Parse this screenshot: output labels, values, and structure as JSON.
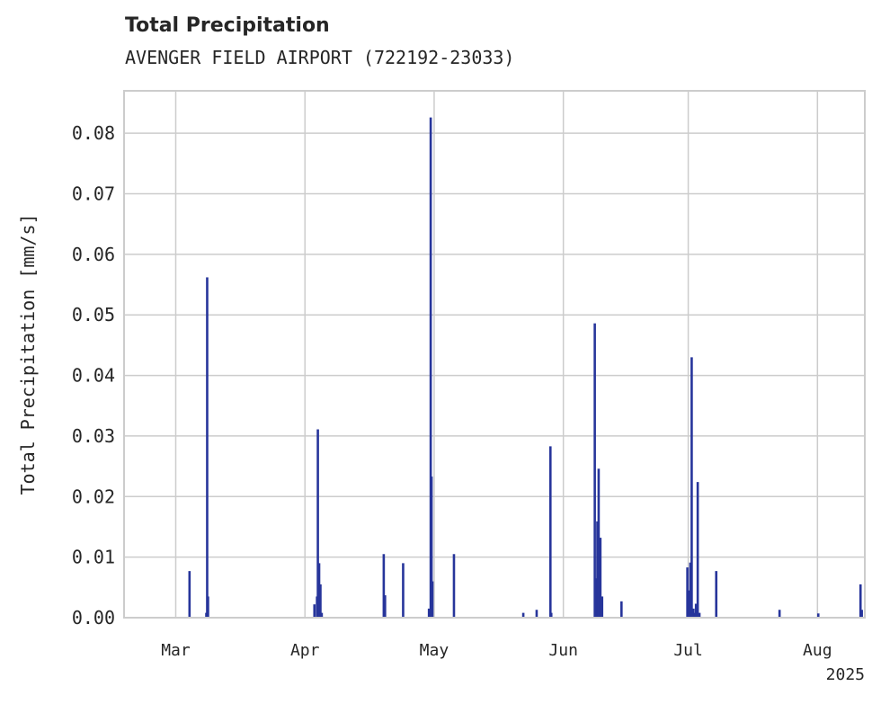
{
  "chart_data": {
    "type": "bar",
    "title": "Total Precipitation",
    "subtitle": "AVENGER FIELD AIRPORT (722192-23033)",
    "xlabel": "",
    "ylabel": "Total Precipitation [mm/s]",
    "ylim": [
      0,
      0.087
    ],
    "xlim_days": [
      0,
      172
    ],
    "yticks": [
      0.0,
      0.01,
      0.02,
      0.03,
      0.04,
      0.05,
      0.06,
      0.07,
      0.08
    ],
    "ytick_labels": [
      "0.00",
      "0.01",
      "0.02",
      "0.03",
      "0.04",
      "0.05",
      "0.06",
      "0.07",
      "0.08"
    ],
    "xticks": [
      {
        "label": "Mar",
        "day": 12
      },
      {
        "label": "Apr",
        "day": 42
      },
      {
        "label": "May",
        "day": 72
      },
      {
        "label": "Jun",
        "day": 102
      },
      {
        "label": "Jul",
        "day": 131
      },
      {
        "label": "Aug",
        "day": 161
      }
    ],
    "year_label": "2025",
    "grid": true,
    "color": "#27359b",
    "series": [
      {
        "name": "Total Precipitation",
        "days": [
          15.2,
          19.1,
          19.3,
          19.5,
          44.2,
          44.8,
          45.0,
          45.3,
          45.6,
          45.9,
          60.3,
          60.6,
          64.8,
          70.8,
          71.2,
          71.4,
          71.6,
          76.6,
          92.7,
          95.8,
          99.0,
          99.2,
          109.3,
          109.5,
          109.9,
          110.2,
          110.6,
          111.0,
          115.5,
          130.8,
          131.2,
          131.5,
          131.8,
          132.2,
          132.5,
          132.8,
          133.2,
          133.6,
          137.5,
          152.2,
          161.2,
          171.0,
          171.3
        ],
        "values": [
          0.0077,
          0.0008,
          0.0562,
          0.0035,
          0.0022,
          0.0035,
          0.0311,
          0.009,
          0.0055,
          0.0008,
          0.0105,
          0.0037,
          0.009,
          0.0015,
          0.0826,
          0.0233,
          0.006,
          0.0105,
          0.0008,
          0.0013,
          0.0283,
          0.0008,
          0.0486,
          0.0065,
          0.0159,
          0.0246,
          0.0132,
          0.0035,
          0.0027,
          0.0083,
          0.0045,
          0.0091,
          0.043,
          0.0015,
          0.0008,
          0.0023,
          0.0224,
          0.0008,
          0.0077,
          0.0013,
          0.0007,
          0.0055,
          0.0013
        ]
      }
    ]
  }
}
